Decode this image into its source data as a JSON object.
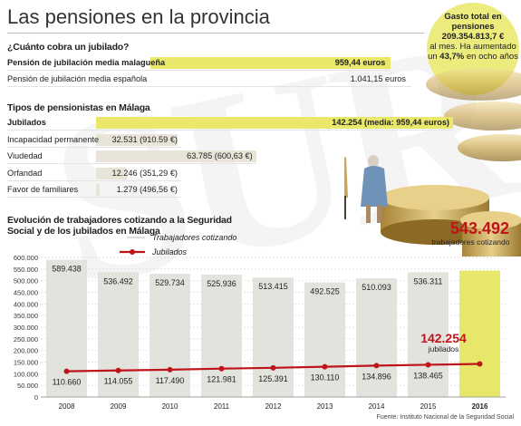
{
  "header": {
    "title": "Las pensiones en la provincia"
  },
  "bubble": {
    "line1": "Gasto total en pensiones",
    "amount": "209.354.813,7 €",
    "line2": "al mes. Ha aumentado un",
    "pct": "43,7%",
    "line3": "en ocho años"
  },
  "section1": {
    "heading": "¿Cuánto cobra un jubilado?",
    "rows": [
      {
        "label": "Pensión de jubilación media malagueña",
        "value": "959,44 euros",
        "amount": 959.44,
        "highlight": true
      },
      {
        "label": "Pensión de jubilación media española",
        "value": "1.041,15 euros",
        "amount": 1041.15,
        "highlight": false
      }
    ]
  },
  "section2": {
    "heading": "Tipos de pensionistas en Málaga",
    "rows": [
      {
        "label": "Jubilados",
        "value": "142.254 (media: 959,44 euros)",
        "amount": 142254,
        "highlight": true
      },
      {
        "label": "Incapacidad permanente",
        "value": "32.531 (910.59 €)",
        "amount": 32531,
        "highlight": false
      },
      {
        "label": "Viudedad",
        "value": "63.785 (600,63 €)",
        "amount": 63785,
        "highlight": false
      },
      {
        "label": "Orfandad",
        "value": "12.246 (351,29 €)",
        "amount": 12246,
        "highlight": false
      },
      {
        "label": "Favor de familiares",
        "value": "1.279 (496,56 €)",
        "amount": 1279,
        "highlight": false
      }
    ]
  },
  "chart_data": {
    "type": "bar",
    "title": "Evolución de trabajadores cotizando a la Seguridad Social y de los jubilados en Málaga",
    "categories": [
      "2008",
      "2009",
      "2010",
      "2011",
      "2012",
      "2013",
      "2014",
      "2015",
      "2016"
    ],
    "ylim": [
      0,
      600000
    ],
    "yticks": [
      "0",
      "50.000",
      "100.000",
      "150.000",
      "200.000",
      "250.000",
      "300.000",
      "350.000",
      "400.000",
      "450.000",
      "500.000",
      "550.000",
      "600.000"
    ],
    "grid": true,
    "legend_position": "top-left",
    "series": [
      {
        "name": "Trabajadores cotizando",
        "kind": "bar",
        "values": [
          589438,
          536492,
          529734,
          525936,
          513415,
          492525,
          510093,
          536311,
          543492
        ],
        "labels": [
          "589.438",
          "536.492",
          "529.734",
          "525.936",
          "513.415",
          "492.525",
          "510.093",
          "536.311",
          "543.492"
        ],
        "color": "#e3e3dd",
        "highlight_color": "#e7e86b"
      },
      {
        "name": "Jubilados",
        "kind": "line",
        "values": [
          110660,
          114055,
          117490,
          121981,
          125391,
          130110,
          134896,
          138465,
          142254
        ],
        "labels": [
          "110.660",
          "114.055",
          "117.490",
          "121.981",
          "125.391",
          "130.110",
          "134.896",
          "138.465",
          "142.254"
        ],
        "color": "#c0141b"
      }
    ],
    "annotations": [
      {
        "value": "543.492",
        "text": "trabajadores cotizando"
      },
      {
        "value": "142.254",
        "text": "jubilados"
      }
    ],
    "source": "Fuente: Instituto Nacional de la Seguridad Social"
  }
}
